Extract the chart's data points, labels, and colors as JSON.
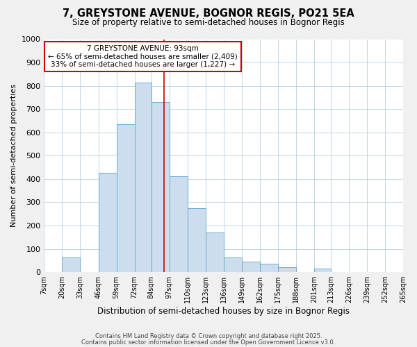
{
  "title": "7, GREYSTONE AVENUE, BOGNOR REGIS, PO21 5EA",
  "subtitle": "Size of property relative to semi-detached houses in Bognor Regis",
  "xlabel": "Distribution of semi-detached houses by size in Bognor Regis",
  "ylabel": "Number of semi-detached properties",
  "bin_labels": [
    "7sqm",
    "20sqm",
    "33sqm",
    "46sqm",
    "59sqm",
    "72sqm",
    "84sqm",
    "97sqm",
    "110sqm",
    "123sqm",
    "136sqm",
    "149sqm",
    "162sqm",
    "175sqm",
    "188sqm",
    "201sqm",
    "213sqm",
    "226sqm",
    "239sqm",
    "252sqm",
    "265sqm"
  ],
  "bin_edges": [
    7,
    20,
    33,
    46,
    59,
    72,
    84,
    97,
    110,
    123,
    136,
    149,
    162,
    175,
    188,
    201,
    213,
    226,
    239,
    252,
    265
  ],
  "bar_heights": [
    0,
    63,
    0,
    425,
    635,
    815,
    730,
    410,
    275,
    170,
    63,
    45,
    35,
    20,
    0,
    15,
    0,
    0,
    0,
    0
  ],
  "bar_color": "#ccdded",
  "bar_edge_color": "#6aaad4",
  "property_value": 93,
  "vline_color": "#cc0000",
  "annotation_line1": "7 GREYSTONE AVENUE: 93sqm",
  "annotation_line2": "← 65% of semi-detached houses are smaller (2,409)",
  "annotation_line3": "33% of semi-detached houses are larger (1,227) →",
  "annotation_box_color": "#cc0000",
  "ylim": [
    0,
    1000
  ],
  "yticks": [
    0,
    100,
    200,
    300,
    400,
    500,
    600,
    700,
    800,
    900,
    1000
  ],
  "footer_line1": "Contains HM Land Registry data © Crown copyright and database right 2025.",
  "footer_line2": "Contains public sector information licensed under the Open Government Licence v3.0.",
  "background_color": "#f0f0f0",
  "plot_bg_color": "#ffffff",
  "grid_color": "#b8cfe0"
}
